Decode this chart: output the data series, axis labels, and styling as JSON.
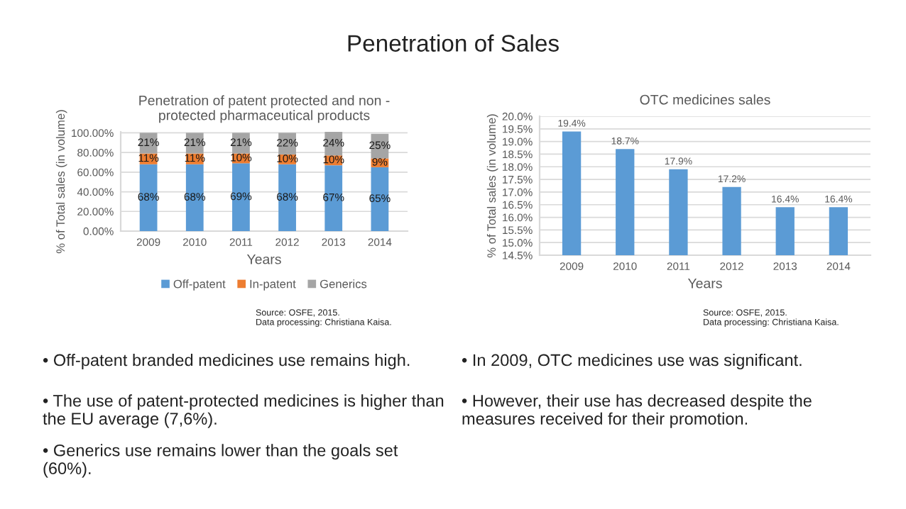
{
  "chart_data": [
    {
      "type": "other",
      "title": "Penetration of Sales"
    },
    {
      "type": "bar",
      "title": "Penetration of patent protected and non - protected pharmaceutical products",
      "xlabel": "Years",
      "ylabel": "% of Total sales (in volume)",
      "categories": [
        "2009",
        "2010",
        "2011",
        "2012",
        "2013",
        "2014"
      ],
      "stacked": true,
      "grid": "y",
      "legend": "bottom",
      "ylim": [
        0,
        101
      ],
      "yticks": [
        {
          "value": 0,
          "label": "0.00%"
        },
        {
          "value": 20,
          "label": "20.00%"
        },
        {
          "value": 40,
          "label": "40.00%"
        },
        {
          "value": 60,
          "label": "60.00%"
        },
        {
          "value": 80,
          "label": "80.00%"
        },
        {
          "value": 100,
          "label": "100.00%"
        }
      ],
      "series": [
        {
          "name": "Off-patent",
          "color": "#5b9bd5",
          "values": [
            68,
            68,
            69,
            68,
            67,
            65
          ],
          "value_labels": [
            "68%",
            "68%",
            "69%",
            "68%",
            "67%",
            "65%"
          ]
        },
        {
          "name": "In-patent",
          "color": "#ed7d31",
          "values": [
            11,
            11,
            10,
            10,
            10,
            9
          ],
          "value_labels": [
            "11%",
            "11%",
            "10%",
            "10%",
            "10%",
            "9%"
          ]
        },
        {
          "name": "Generics",
          "color": "#a5a5a5",
          "values": [
            21,
            21,
            21,
            22,
            24,
            25
          ],
          "value_labels": [
            "21%",
            "21%",
            "21%",
            "22%",
            "24%",
            "25%"
          ]
        }
      ],
      "annotations": [
        "Source: OSFE, 2015.\nData processing: Christiana Kaisa.",
        "• Off-patent branded medicines use remains high.",
        "• The use of patent-protected medicines is higher than the EU average (7,6%).",
        "• Generics use remains lower than the goals set (60%)."
      ]
    },
    {
      "type": "bar",
      "title": "OTC medicines sales",
      "xlabel": "Years",
      "ylabel": "% of Total sales (in volume)",
      "categories": [
        "2009",
        "2010",
        "2011",
        "2012",
        "2013",
        "2014"
      ],
      "grid": "y",
      "ylim": [
        14.5,
        20
      ],
      "yticks": [
        {
          "value": 14.5,
          "label": "14.5%"
        },
        {
          "value": 15,
          "label": "15.0%"
        },
        {
          "value": 15.5,
          "label": "15.5%"
        },
        {
          "value": 16,
          "label": "16.0%"
        },
        {
          "value": 16.5,
          "label": "16.5%"
        },
        {
          "value": 17,
          "label": "17.0%"
        },
        {
          "value": 17.5,
          "label": "17.5%"
        },
        {
          "value": 18,
          "label": "18.0%"
        },
        {
          "value": 18.5,
          "label": "18.5%"
        },
        {
          "value": 19,
          "label": "19.0%"
        },
        {
          "value": 19.5,
          "label": "19.5%"
        },
        {
          "value": 20,
          "label": "20.0%"
        }
      ],
      "series": [
        {
          "color": "#5b9bd5",
          "values": [
            19.4,
            18.7,
            17.9,
            17.2,
            16.4,
            16.4
          ],
          "value_labels": [
            "19.4%",
            "18.7%",
            "17.9%",
            "17.2%",
            "16.4%",
            "16.4%"
          ]
        }
      ],
      "annotations": [
        "Source: OSFE, 2015.\nData processing: Christiana Kaisa.",
        "• In 2009, OTC medicines use was significant.",
        "• However, their use has decreased despite the measures received for their promotion."
      ]
    }
  ]
}
